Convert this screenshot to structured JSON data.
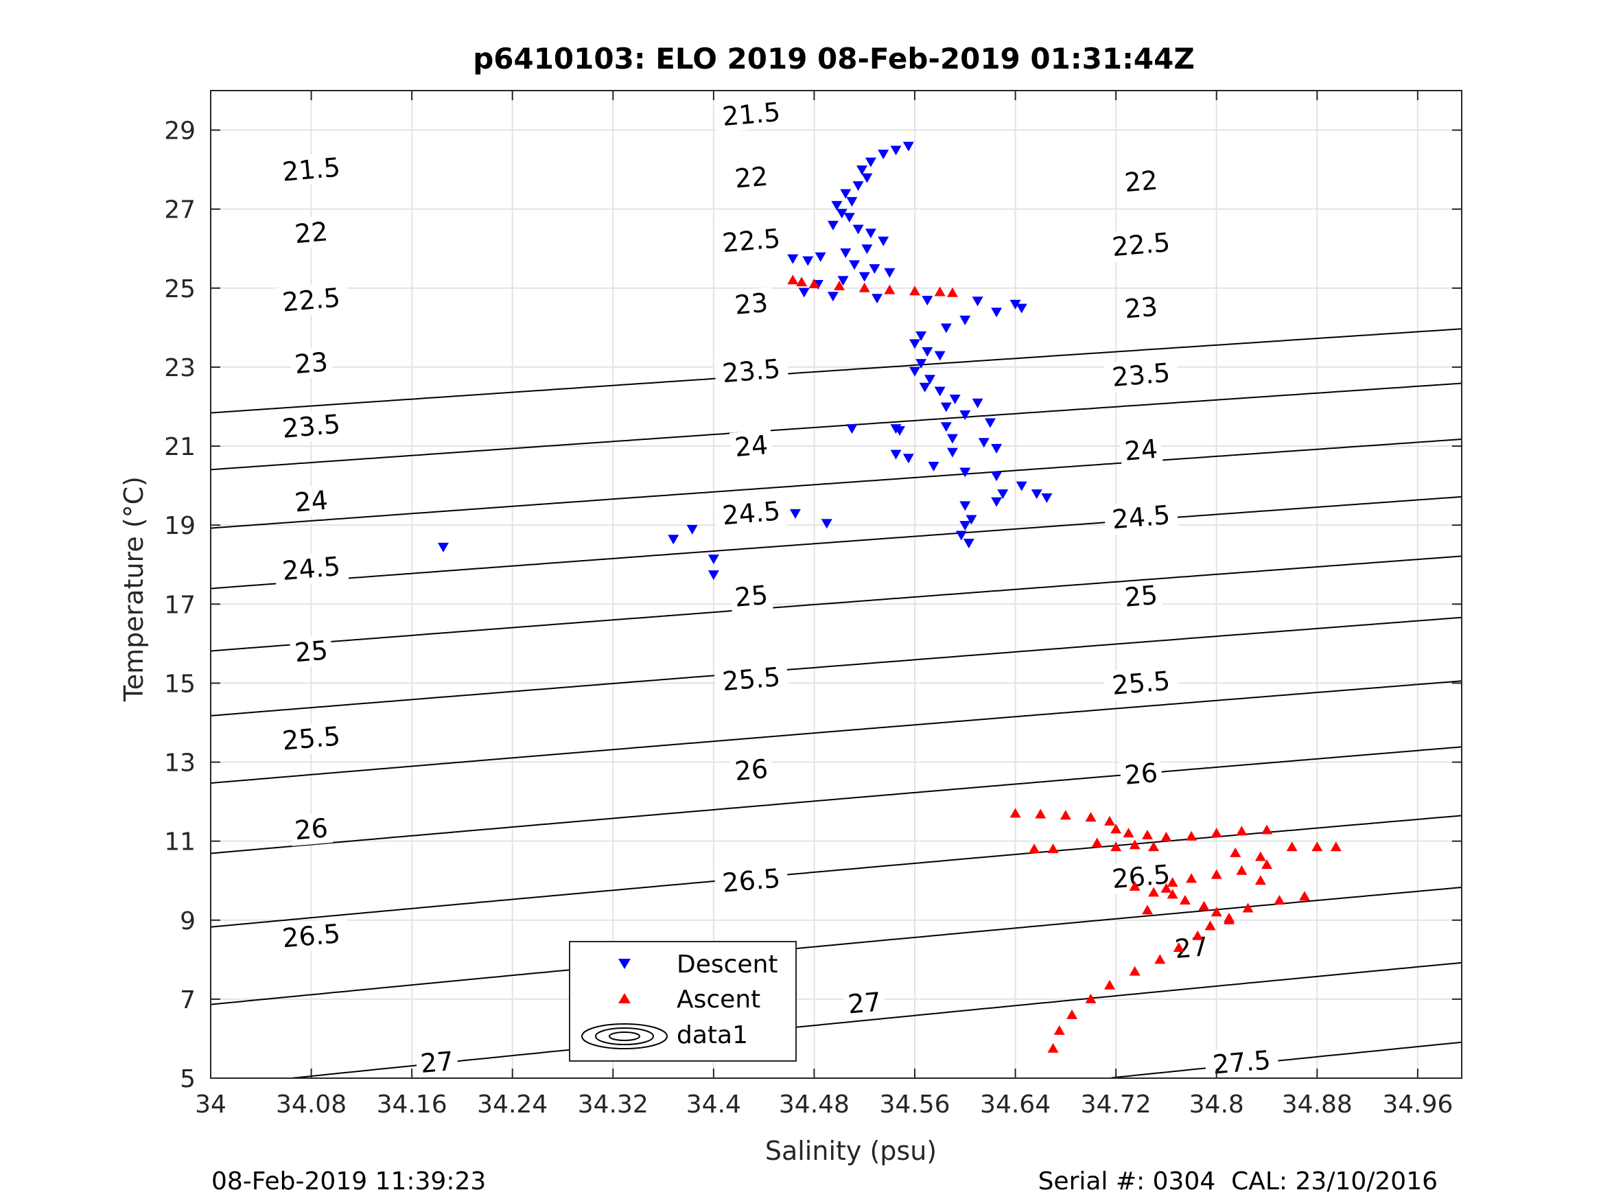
{
  "chart_data": {
    "type": "scatter",
    "title": "p6410103: ELO 2019 08-Feb-2019 01:31:44Z",
    "xlabel": "Salinity (psu)",
    "ylabel": "Temperature (°C)",
    "xlim": [
      34,
      34.995
    ],
    "ylim": [
      5,
      30
    ],
    "x_ticks": [
      "34",
      "34.08",
      "34.16",
      "34.24",
      "34.32",
      "34.4",
      "34.48",
      "34.56",
      "34.64",
      "34.72",
      "34.8",
      "34.88",
      "34.96"
    ],
    "x_tick_values": [
      34,
      34.08,
      34.16,
      34.24,
      34.32,
      34.4,
      34.48,
      34.56,
      34.64,
      34.72,
      34.8,
      34.88,
      34.96
    ],
    "y_ticks": [
      "5",
      "7",
      "9",
      "11",
      "13",
      "15",
      "17",
      "19",
      "21",
      "23",
      "25",
      "27",
      "29"
    ],
    "y_tick_values": [
      5,
      7,
      9,
      11,
      13,
      15,
      17,
      19,
      21,
      23,
      25,
      27,
      29
    ],
    "grid": true,
    "legend_position": "bottom-left",
    "legend": [
      {
        "name": "Descent",
        "marker": "triangle-down",
        "color": "#0000ff"
      },
      {
        "name": "Ascent",
        "marker": "triangle-up",
        "color": "#ff0000"
      },
      {
        "name": "data1",
        "marker": "contour",
        "color": "#000000"
      }
    ],
    "series": [
      {
        "name": "Descent",
        "color": "#0000ff",
        "marker": "triangle-down",
        "points": [
          [
            34.555,
            28.6
          ],
          [
            34.545,
            28.5
          ],
          [
            34.535,
            28.4
          ],
          [
            34.525,
            28.2
          ],
          [
            34.518,
            28.0
          ],
          [
            34.522,
            27.8
          ],
          [
            34.515,
            27.6
          ],
          [
            34.505,
            27.4
          ],
          [
            34.498,
            27.1
          ],
          [
            34.51,
            27.2
          ],
          [
            34.502,
            26.9
          ],
          [
            34.508,
            26.8
          ],
          [
            34.495,
            26.6
          ],
          [
            34.515,
            26.5
          ],
          [
            34.525,
            26.4
          ],
          [
            34.535,
            26.2
          ],
          [
            34.522,
            26.0
          ],
          [
            34.505,
            25.9
          ],
          [
            34.485,
            25.8
          ],
          [
            34.463,
            25.75
          ],
          [
            34.475,
            25.7
          ],
          [
            34.512,
            25.6
          ],
          [
            34.528,
            25.5
          ],
          [
            34.54,
            25.4
          ],
          [
            34.52,
            25.3
          ],
          [
            34.503,
            25.2
          ],
          [
            34.483,
            25.1
          ],
          [
            34.472,
            24.9
          ],
          [
            34.495,
            24.8
          ],
          [
            34.53,
            24.75
          ],
          [
            34.57,
            24.7
          ],
          [
            34.61,
            24.68
          ],
          [
            34.64,
            24.6
          ],
          [
            34.645,
            24.5
          ],
          [
            34.625,
            24.4
          ],
          [
            34.6,
            24.2
          ],
          [
            34.585,
            24.0
          ],
          [
            34.565,
            23.8
          ],
          [
            34.56,
            23.6
          ],
          [
            34.57,
            23.4
          ],
          [
            34.58,
            23.3
          ],
          [
            34.565,
            23.1
          ],
          [
            34.56,
            22.9
          ],
          [
            34.572,
            22.7
          ],
          [
            34.568,
            22.5
          ],
          [
            34.58,
            22.4
          ],
          [
            34.592,
            22.2
          ],
          [
            34.61,
            22.1
          ],
          [
            34.585,
            22.0
          ],
          [
            34.6,
            21.8
          ],
          [
            34.62,
            21.6
          ],
          [
            34.585,
            21.5
          ],
          [
            34.545,
            21.45
          ],
          [
            34.51,
            21.45
          ],
          [
            34.548,
            21.4
          ],
          [
            34.59,
            21.2
          ],
          [
            34.615,
            21.1
          ],
          [
            34.625,
            20.95
          ],
          [
            34.59,
            20.85
          ],
          [
            34.545,
            20.8
          ],
          [
            34.555,
            20.7
          ],
          [
            34.575,
            20.5
          ],
          [
            34.6,
            20.35
          ],
          [
            34.625,
            20.25
          ],
          [
            34.645,
            20.0
          ],
          [
            34.63,
            19.8
          ],
          [
            34.625,
            19.6
          ],
          [
            34.657,
            19.8
          ],
          [
            34.665,
            19.7
          ],
          [
            34.6,
            19.5
          ],
          [
            34.605,
            19.15
          ],
          [
            34.6,
            19.0
          ],
          [
            34.597,
            18.75
          ],
          [
            34.603,
            18.55
          ],
          [
            34.465,
            19.3
          ],
          [
            34.49,
            19.05
          ],
          [
            34.368,
            18.65
          ],
          [
            34.383,
            18.9
          ],
          [
            34.4,
            18.15
          ],
          [
            34.4,
            17.75
          ],
          [
            34.185,
            18.45
          ]
        ]
      },
      {
        "name": "Ascent",
        "color": "#ff0000",
        "marker": "triangle-up",
        "points": [
          [
            34.463,
            25.2
          ],
          [
            34.47,
            25.15
          ],
          [
            34.48,
            25.1
          ],
          [
            34.5,
            25.05
          ],
          [
            34.52,
            25.0
          ],
          [
            34.54,
            24.95
          ],
          [
            34.56,
            24.92
          ],
          [
            34.58,
            24.9
          ],
          [
            34.59,
            24.88
          ],
          [
            34.64,
            11.7
          ],
          [
            34.66,
            11.68
          ],
          [
            34.68,
            11.65
          ],
          [
            34.7,
            11.6
          ],
          [
            34.715,
            11.5
          ],
          [
            34.72,
            11.3
          ],
          [
            34.73,
            11.2
          ],
          [
            34.745,
            11.15
          ],
          [
            34.76,
            11.1
          ],
          [
            34.78,
            11.12
          ],
          [
            34.8,
            11.2
          ],
          [
            34.82,
            11.25
          ],
          [
            34.84,
            11.28
          ],
          [
            34.655,
            10.8
          ],
          [
            34.67,
            10.8
          ],
          [
            34.705,
            10.95
          ],
          [
            34.72,
            10.85
          ],
          [
            34.735,
            10.9
          ],
          [
            34.75,
            10.85
          ],
          [
            34.815,
            10.7
          ],
          [
            34.835,
            10.6
          ],
          [
            34.84,
            10.4
          ],
          [
            34.82,
            10.25
          ],
          [
            34.8,
            10.15
          ],
          [
            34.78,
            10.05
          ],
          [
            34.765,
            9.95
          ],
          [
            34.76,
            9.8
          ],
          [
            34.765,
            9.65
          ],
          [
            34.775,
            9.5
          ],
          [
            34.79,
            9.35
          ],
          [
            34.8,
            9.2
          ],
          [
            34.81,
            9.0
          ],
          [
            34.795,
            8.85
          ],
          [
            34.785,
            8.6
          ],
          [
            34.77,
            8.3
          ],
          [
            34.755,
            8.0
          ],
          [
            34.735,
            7.7
          ],
          [
            34.715,
            7.35
          ],
          [
            34.7,
            7.0
          ],
          [
            34.685,
            6.6
          ],
          [
            34.675,
            6.2
          ],
          [
            34.67,
            5.75
          ],
          [
            34.86,
            10.85
          ],
          [
            34.88,
            10.85
          ],
          [
            34.895,
            10.85
          ],
          [
            34.835,
            10.0
          ],
          [
            34.85,
            9.5
          ],
          [
            34.87,
            9.6
          ],
          [
            34.745,
            9.25
          ],
          [
            34.735,
            9.85
          ],
          [
            34.75,
            9.7
          ],
          [
            34.81,
            9.05
          ],
          [
            34.825,
            9.3
          ]
        ]
      }
    ],
    "contours": [
      {
        "level": "21.5",
        "sigma": 21.5,
        "labels": [
          [
            34.08,
            28.0
          ],
          [
            34.43,
            29.4
          ]
        ]
      },
      {
        "level": "22",
        "sigma": 22,
        "labels": [
          [
            34.08,
            26.4
          ],
          [
            34.43,
            27.8
          ],
          [
            34.74,
            27.7
          ]
        ]
      },
      {
        "level": "22.5",
        "sigma": 22.5,
        "labels": [
          [
            34.08,
            24.7
          ],
          [
            34.43,
            26.2
          ],
          [
            34.74,
            26.1
          ]
        ]
      },
      {
        "level": "23",
        "sigma": 23,
        "labels": [
          [
            34.08,
            23.1
          ],
          [
            34.43,
            24.6
          ],
          [
            34.74,
            24.5
          ]
        ]
      },
      {
        "level": "23.5",
        "sigma": 23.5,
        "labels": [
          [
            34.08,
            21.5
          ],
          [
            34.43,
            22.9
          ],
          [
            34.74,
            22.8
          ]
        ]
      },
      {
        "level": "24",
        "sigma": 24,
        "labels": [
          [
            34.08,
            19.6
          ],
          [
            34.43,
            21.0
          ],
          [
            34.74,
            20.9
          ]
        ]
      },
      {
        "level": "24.5",
        "sigma": 24.5,
        "labels": [
          [
            34.08,
            17.9
          ],
          [
            34.43,
            19.3
          ],
          [
            34.74,
            19.2
          ]
        ]
      },
      {
        "level": "25",
        "sigma": 25,
        "labels": [
          [
            34.08,
            15.8
          ],
          [
            34.43,
            17.2
          ],
          [
            34.74,
            17.2
          ]
        ]
      },
      {
        "level": "25.5",
        "sigma": 25.5,
        "labels": [
          [
            34.08,
            13.6
          ],
          [
            34.43,
            15.1
          ],
          [
            34.74,
            15.0
          ]
        ]
      },
      {
        "level": "26",
        "sigma": 26,
        "labels": [
          [
            34.08,
            11.3
          ],
          [
            34.43,
            12.8
          ],
          [
            34.74,
            12.7
          ]
        ]
      },
      {
        "level": "26.5",
        "sigma": 26.5,
        "labels": [
          [
            34.08,
            8.6
          ],
          [
            34.43,
            10.0
          ],
          [
            34.74,
            10.1
          ]
        ]
      },
      {
        "level": "27",
        "sigma": 27,
        "labels": [
          [
            34.18,
            5.4
          ],
          [
            34.52,
            6.9
          ],
          [
            34.78,
            8.3
          ]
        ]
      },
      {
        "level": "27.5",
        "sigma": 27.5,
        "labels": [
          [
            34.82,
            5.4
          ]
        ]
      }
    ]
  },
  "footer": {
    "left": "08-Feb-2019 11:39:23",
    "right": "Serial #: 0304  CAL: 23/10/2016"
  }
}
